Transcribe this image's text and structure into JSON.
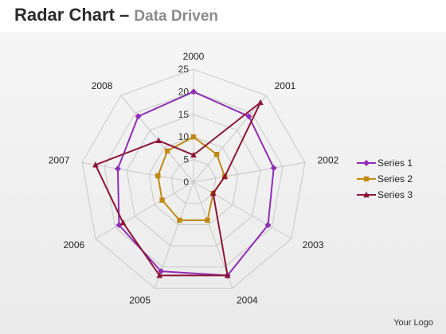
{
  "header": {
    "title": "Radar Chart –",
    "subtitle": "Data Driven"
  },
  "footer": {
    "logo": "Your Logo"
  },
  "chart_data": {
    "type": "radar",
    "categories": [
      "2000",
      "2001",
      "2002",
      "2003",
      "2004",
      "2005",
      "2006",
      "2007",
      "2008"
    ],
    "rmax": 25,
    "ticks": [
      "0",
      "5",
      "10",
      "15",
      "20",
      "25"
    ],
    "tick_values": [
      0,
      5,
      10,
      15,
      20,
      25
    ],
    "grid": true,
    "legend_position": "right",
    "series": [
      {
        "name": "Series 1",
        "color": "#8e2eb5",
        "marker": "diamond",
        "values": [
          20,
          19,
          18,
          19,
          22,
          21,
          19,
          17,
          19
        ]
      },
      {
        "name": "Series 2",
        "color": "#c08a12",
        "marker": "square",
        "values": [
          10,
          8,
          7,
          5,
          9,
          9,
          8,
          8,
          9
        ]
      },
      {
        "name": "Series 3",
        "color": "#8b1535",
        "marker": "triangle",
        "values": [
          6,
          23,
          7,
          5,
          22,
          22,
          18,
          22,
          12
        ]
      }
    ]
  }
}
